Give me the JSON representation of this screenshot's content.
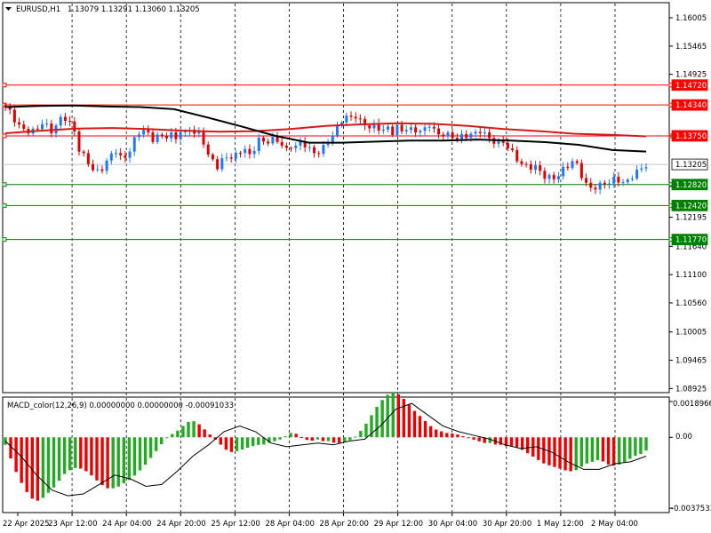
{
  "header": {
    "symbol": "EURUSD,H1",
    "ohlc": "1.13079 1.13291 1.13060 1.13205"
  },
  "macd": {
    "label": "MACD_color(12,26,9) 0.00000000 0.00000000 -0.00091033",
    "axis_top": "0.0018966",
    "axis_zero": "0.00",
    "axis_bottom": "-0.0037533"
  },
  "colors": {
    "bull": "#1e78ff",
    "bear": "#e00000",
    "ma_slow": "#d81818",
    "ma_fast": "#000000",
    "level_red": "#ff0000",
    "level_green": "#008000",
    "current_price": "#ffffff",
    "hist_pos_up": "#22aa22",
    "hist_down": "#ee0000"
  },
  "chart_data": [
    {
      "type": "candlestick",
      "symbol": "EURUSD",
      "timeframe": "H1",
      "ylim": [
        1.0888,
        1.1626
      ],
      "y_ticks": [
        "1.16005",
        "1.15465",
        "1.14925",
        "1.13750",
        "1.12795",
        "1.12195",
        "1.11640",
        "1.11100",
        "1.10560",
        "1.10005",
        "1.09465",
        "1.08925"
      ],
      "x_ticks": [
        "22 Apr 2025",
        "23 Apr 12:00",
        "24 Apr 04:00",
        "24 Apr 20:00",
        "25 Apr 12:00",
        "28 Apr 04:00",
        "28 Apr 20:00",
        "29 Apr 12:00",
        "30 Apr 04:00",
        "30 Apr 20:00",
        "1 May 12:00",
        "2 May 04:00"
      ],
      "levels": [
        {
          "label": "1.14720",
          "value": 1.1472,
          "color": "red"
        },
        {
          "label": "1.14340",
          "value": 1.1434,
          "color": "red"
        },
        {
          "label": "1.13750",
          "value": 1.1375,
          "color": "red"
        },
        {
          "label": "1.13205",
          "value": 1.13205,
          "color": "current"
        },
        {
          "label": "1.12820",
          "value": 1.1282,
          "color": "green"
        },
        {
          "label": "1.12420",
          "value": 1.1242,
          "color": "green"
        },
        {
          "label": "1.11770",
          "value": 1.1177,
          "color": "green"
        }
      ],
      "close_path": [
        1.1428,
        1.1418,
        1.1405,
        1.1392,
        1.1384,
        1.1378,
        1.1388,
        1.1403,
        1.1395,
        1.138,
        1.1399,
        1.1412,
        1.1405,
        1.1388,
        1.1345,
        1.133,
        1.1318,
        1.1308,
        1.1312,
        1.1322,
        1.1335,
        1.1348,
        1.1332,
        1.134,
        1.1358,
        1.1375,
        1.1388,
        1.138,
        1.137,
        1.1376,
        1.1365,
        1.1382,
        1.137,
        1.1388,
        1.1376,
        1.139,
        1.1372,
        1.1388,
        1.134,
        1.133,
        1.1312,
        1.1328,
        1.1342,
        1.1334,
        1.134,
        1.135,
        1.1335,
        1.1355,
        1.1372,
        1.136,
        1.1362,
        1.137,
        1.1365,
        1.1348,
        1.1355,
        1.135,
        1.1365,
        1.1358,
        1.1345,
        1.134,
        1.1348,
        1.1365,
        1.1382,
        1.14,
        1.141,
        1.1404,
        1.1416,
        1.1406,
        1.1398,
        1.1388,
        1.1392,
        1.1384,
        1.1396,
        1.1382,
        1.139,
        1.1378,
        1.1395,
        1.1385,
        1.139,
        1.138,
        1.1395,
        1.1388,
        1.1376,
        1.1384,
        1.137,
        1.1365,
        1.1374,
        1.1378,
        1.1382,
        1.1374,
        1.1386,
        1.1372,
        1.137,
        1.1364,
        1.136,
        1.135,
        1.134,
        1.133,
        1.1318,
        1.1312,
        1.1314,
        1.1308,
        1.13,
        1.1296,
        1.129,
        1.1305,
        1.1318,
        1.133,
        1.132,
        1.1292,
        1.1272,
        1.1278,
        1.1282,
        1.1286,
        1.1282,
        1.129,
        1.1292,
        1.1286,
        1.1296,
        1.13,
        1.131,
        1.13205
      ],
      "sma_slow_path": [
        1.138,
        1.1385,
        1.1389,
        1.139,
        1.1388,
        1.1385,
        1.1383,
        1.1384,
        1.1388,
        1.1394,
        1.1397,
        1.1399,
        1.1398,
        1.1394,
        1.1388,
        1.1384,
        1.1379,
        1.1377,
        1.1374
      ],
      "sma_fast_path": [
        1.143,
        1.1432,
        1.1433,
        1.1431,
        1.143,
        1.1426,
        1.141,
        1.1393,
        1.1375,
        1.1362,
        1.1362,
        1.1364,
        1.1366,
        1.1366,
        1.1368,
        1.1366,
        1.1363,
        1.1358,
        1.1348,
        1.1345
      ]
    },
    {
      "type": "bar",
      "name": "MACD histogram",
      "ylim": [
        -0.0037533,
        0.0018966
      ],
      "hist_path": [
        -0.0004,
        -0.0012,
        -0.002,
        -0.0026,
        -0.0031,
        -0.0034,
        -0.0033,
        -0.003,
        -0.0027,
        -0.0023,
        -0.0019,
        -0.0017,
        -0.0016,
        -0.0017,
        -0.0019,
        -0.0022,
        -0.0025,
        -0.0027,
        -0.0027,
        -0.0026,
        -0.0024,
        -0.0022,
        -0.0019,
        -0.0016,
        -0.0012,
        -0.0008,
        -0.0004,
        0.0,
        0.0002,
        0.0004,
        0.0007,
        0.0009,
        0.0008,
        0.0005,
        0.0002,
        -0.0001,
        -0.0004,
        -0.0007,
        -0.0008,
        -0.0007,
        -0.0006,
        -0.0005,
        -0.0004,
        -0.0004,
        -0.0003,
        -0.0002,
        -0.0001,
        0.0001,
        0.0003,
        0.0001,
        -0.0001,
        -0.0002,
        -0.0001,
        -0.0002,
        -0.0002,
        -0.0003,
        -0.0003,
        -0.0002,
        -0.0001,
        0.0002,
        0.0006,
        0.0011,
        0.0016,
        0.002,
        0.0023,
        0.0024,
        0.0022,
        0.0019,
        0.0015,
        0.0012,
        0.0009,
        0.0006,
        0.0004,
        0.0003,
        0.0002,
        0.0002,
        0.0001,
        0.0,
        -0.0001,
        -0.0002,
        -0.0003,
        -0.0003,
        -0.0004,
        -0.0004,
        -0.0005,
        -0.0005,
        -0.0006,
        -0.0008,
        -0.001,
        -0.0012,
        -0.0014,
        -0.0015,
        -0.0016,
        -0.0017,
        -0.0018,
        -0.0018,
        -0.0016,
        -0.0014,
        -0.0013,
        -0.0012,
        -0.0013,
        -0.0015,
        -0.0015,
        -0.0014,
        -0.0012,
        -0.001,
        -0.0009,
        -0.0007
      ],
      "signal_path": [
        -0.0002,
        -0.001,
        -0.002,
        -0.0028,
        -0.0031,
        -0.003,
        -0.0025,
        -0.002,
        -0.0022,
        -0.0026,
        -0.0025,
        -0.0018,
        -0.001,
        -0.0004,
        0.0003,
        0.0006,
        0.0003,
        -0.0003,
        -0.0005,
        -0.0004,
        -0.0003,
        -0.0004,
        -0.0002,
        -0.0001,
        0.0006,
        0.0015,
        0.0018,
        0.0012,
        0.0006,
        0.0003,
        0.0001,
        -0.0001,
        -0.0004,
        -0.0006,
        -0.0005,
        -0.0008,
        -0.0013,
        -0.0017,
        -0.0017,
        -0.0014,
        -0.0013,
        -0.001
      ]
    }
  ]
}
